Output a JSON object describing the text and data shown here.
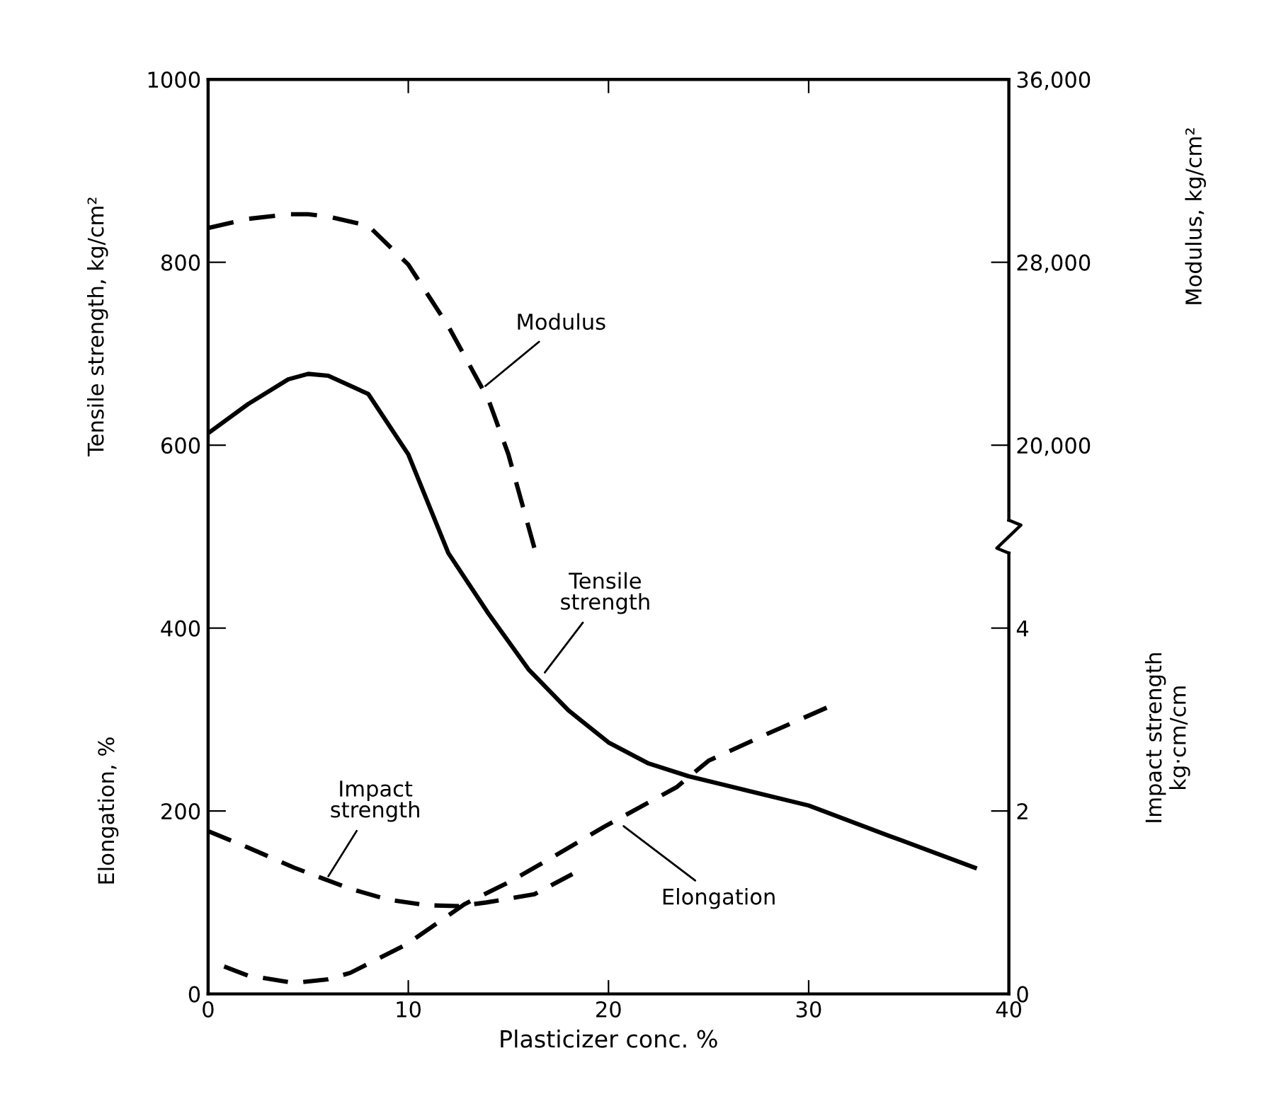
{
  "chart_data": {
    "type": "line",
    "xlabel": "Plasticizer conc. %",
    "ylabel": "Tensile strength, kg/cm²",
    "y2label": "Modulus, kg/cm²",
    "y3label": "Impact strength\nkg·cm/cm",
    "xlim": [
      0,
      40
    ],
    "xticks": [
      0,
      10,
      20,
      30,
      40
    ],
    "ylim": [
      0,
      1000
    ],
    "yticks": [
      0,
      200,
      400,
      600,
      800,
      1000
    ],
    "y2lim": [
      -4000,
      36000
    ],
    "y2ticks": [
      {
        "value": 20000,
        "label": "20,000"
      },
      {
        "value": 28000,
        "label": "28,000"
      },
      {
        "value": 36000,
        "label": "36,000"
      }
    ],
    "y3lim": [
      0,
      10
    ],
    "y3ticks": [
      0,
      2,
      4
    ],
    "grid": false,
    "series": [
      {
        "color": "#000000",
        "line_style": "solid",
        "axis": "y",
        "x": [
          0,
          2,
          4,
          5,
          6,
          8,
          10,
          12,
          14,
          16,
          18,
          20,
          22,
          24,
          27,
          30,
          34,
          38.3
        ],
        "values": [
          613,
          645,
          672,
          678,
          676,
          656,
          590,
          482,
          416,
          355,
          310,
          275,
          252,
          238,
          222,
          206,
          173,
          138
        ]
      },
      {
        "color": "#000000",
        "line_style": "dashed",
        "axis": "y2",
        "x": [
          0,
          2,
          4,
          5,
          6,
          8,
          10,
          12,
          14,
          15,
          16.3
        ],
        "values": [
          29500,
          29900,
          30100,
          30100,
          30000,
          29600,
          27900,
          25200,
          22000,
          19600,
          15500
        ]
      },
      {
        "color": "#000000",
        "line_style": "dashed",
        "axis": "y",
        "x": [
          0.8,
          2,
          4.3,
          6,
          7.1,
          9.9,
          12.8,
          15.1,
          17.4,
          19.8,
          23.4,
          25,
          28,
          30.9
        ],
        "values": [
          30,
          20,
          12,
          16,
          23,
          54,
          98,
          123,
          152,
          183,
          226,
          255,
          285,
          313
        ]
      },
      {
        "color": "#000000",
        "line_style": "dashed",
        "axis": "y3",
        "x": [
          0,
          2,
          4.3,
          7.1,
          9,
          10.9,
          12.5,
          13.9,
          16.3,
          18.2
        ],
        "values": [
          1.78,
          1.6,
          1.38,
          1.15,
          1.03,
          0.97,
          0.96,
          1.0,
          1.09,
          1.31
        ]
      }
    ],
    "annotations": [
      {
        "text": "Modulus",
        "x": 13.7,
        "y": 662
      },
      {
        "text": "Tensile\nstrength",
        "x": 16.7,
        "y": 348
      },
      {
        "text": "Impact\nstrength",
        "x": 5.9,
        "y": 125
      },
      {
        "text": "Elongation",
        "x": 20.6,
        "y": 186
      },
      "Elongation, %"
    ]
  }
}
